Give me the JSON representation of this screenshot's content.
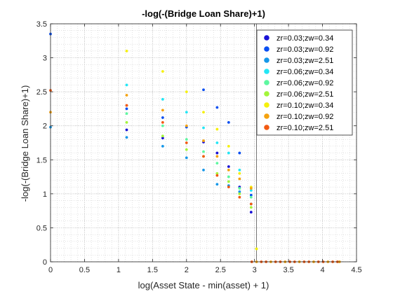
{
  "chart_data": {
    "type": "scatter",
    "title": "-log(-(Bridge Loan Share)+1)",
    "xlabel": "log(Asset State - min(asset) + 1)",
    "ylabel": "-log(-(Bridge Loan Share)+1)",
    "xlim": [
      0,
      4.5
    ],
    "ylim": [
      0,
      3.5
    ],
    "xticks": [
      0,
      0.5,
      1,
      1.5,
      2,
      2.5,
      3,
      3.5,
      4,
      4.5
    ],
    "yticks": [
      0,
      0.5,
      1,
      1.5,
      2,
      2.5,
      3,
      3.5
    ],
    "xtick_labels": [
      "0",
      "0.5",
      "1",
      "1.5",
      "2",
      "2.5",
      "3",
      "3.5",
      "4",
      "4.5"
    ],
    "ytick_labels": [
      "0",
      "0.5",
      "1",
      "1.5",
      "2",
      "2.5",
      "3",
      "3.5"
    ],
    "grid": true,
    "minor_grid": true,
    "legend_position": "top-right",
    "vertical_line_x": 3.03,
    "flat_x": [
      2.96,
      3.03,
      3.1,
      3.17,
      3.24,
      3.31,
      3.38,
      3.45,
      3.52,
      3.59,
      3.66,
      3.73,
      3.8,
      3.87,
      3.94,
      4.01,
      4.08,
      4.15,
      4.22,
      4.25
    ],
    "series": [
      {
        "name": "zr=0.03;zw=0.34",
        "color": "#1a12d6",
        "x": [
          1.12,
          1.65,
          2.25,
          2.45,
          2.62,
          2.78,
          2.95
        ],
        "y": [
          1.94,
          1.82,
          1.76,
          1.6,
          1.4,
          1.1,
          0.73
        ]
      },
      {
        "name": "zr=0.03;zw=0.92",
        "color": "#0a4ff2",
        "x": [
          0.0,
          1.12,
          1.65,
          2.0,
          2.25,
          2.45,
          2.62,
          2.78,
          2.95
        ],
        "y": [
          3.35,
          2.25,
          2.12,
          1.98,
          2.53,
          2.27,
          2.05,
          1.6,
          0.98
        ]
      },
      {
        "name": "zr=0.03;zw=2.51",
        "color": "#1597e8",
        "x": [
          0.0,
          1.12,
          1.65,
          2.0,
          2.25,
          2.45,
          2.62,
          2.78,
          2.95
        ],
        "y": [
          1.98,
          1.83,
          1.7,
          1.53,
          1.35,
          1.14,
          1.12,
          1.03,
          0.85
        ]
      },
      {
        "name": "zr=0.06;zw=0.34",
        "color": "#23e6f5",
        "x": [
          1.12,
          1.65,
          2.0,
          2.25,
          2.45,
          2.62,
          2.78,
          2.95
        ],
        "y": [
          2.6,
          2.39,
          2.2,
          1.97,
          1.75,
          1.6,
          1.35,
          1.05
        ]
      },
      {
        "name": "zr=0.06;zw=0.92",
        "color": "#5ef7a0",
        "x": [
          1.12,
          1.65,
          2.0,
          2.25,
          2.45,
          2.62,
          2.78,
          2.95
        ],
        "y": [
          2.18,
          2.0,
          1.8,
          1.62,
          1.45,
          1.25,
          1.08,
          0.95
        ]
      },
      {
        "name": "zr=0.06;zw=2.51",
        "color": "#a3f53a",
        "x": [
          1.12,
          1.65,
          2.0,
          2.25,
          2.45,
          2.62,
          2.78,
          2.95,
          3.03
        ],
        "y": [
          2.05,
          1.85,
          1.65,
          1.55,
          1.3,
          1.18,
          1.0,
          0.8,
          0.19
        ]
      },
      {
        "name": "zr=0.10;zw=0.34",
        "color": "#f5f00c",
        "x": [
          1.12,
          1.65,
          2.0,
          2.25,
          2.45,
          2.62,
          2.78,
          2.95,
          3.03
        ],
        "y": [
          3.1,
          2.8,
          2.5,
          2.2,
          1.95,
          1.7,
          1.3,
          1.1,
          0.19
        ]
      },
      {
        "name": "zr=0.10;zw=0.92",
        "color": "#f5a20f",
        "x": [
          0.0,
          1.12,
          1.65,
          2.0,
          2.25,
          2.45,
          2.62,
          2.78,
          2.95
        ],
        "y": [
          2.2,
          2.45,
          2.23,
          2.0,
          1.78,
          1.55,
          1.35,
          1.22,
          1.08
        ]
      },
      {
        "name": "zr=0.10;zw=2.51",
        "color": "#f25a12",
        "x": [
          0.0,
          1.12,
          1.65,
          2.0,
          2.25,
          2.45,
          2.62,
          2.78,
          2.95
        ],
        "y": [
          2.52,
          2.3,
          2.05,
          1.75,
          1.55,
          1.27,
          1.1,
          0.95,
          0.85
        ]
      }
    ]
  }
}
